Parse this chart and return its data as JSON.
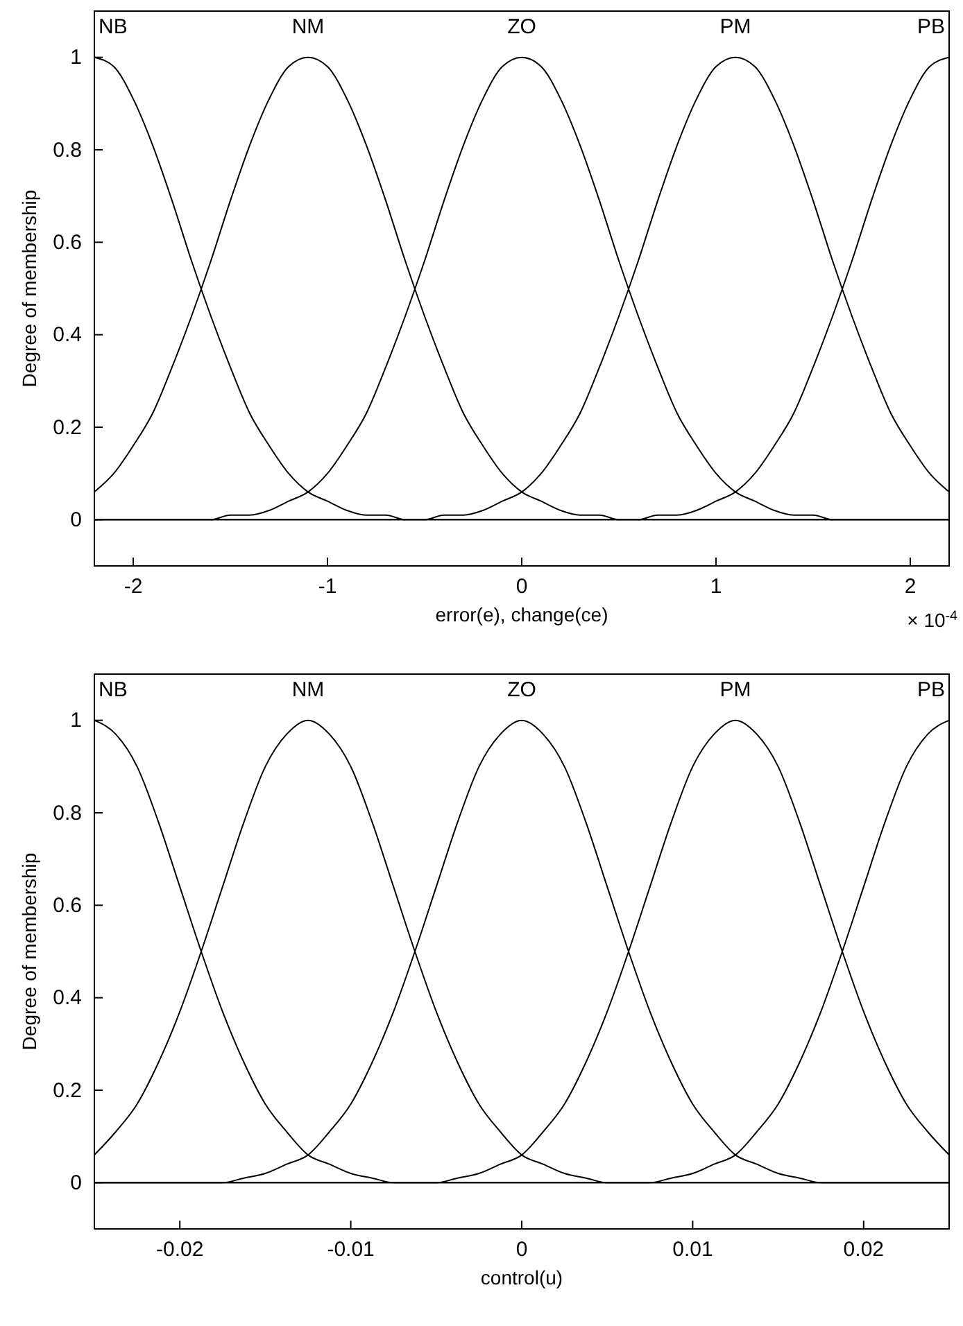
{
  "chart_data": [
    {
      "type": "line",
      "xlabel": "error(e), change(ce)",
      "ylabel": "Degree of membership",
      "annotations": [
        "× 10$^{-4}$"
      ],
      "xlim": [
        -2.2,
        2.2
      ],
      "xticks": [
        -2,
        -1,
        0,
        1,
        2
      ],
      "ylim": [
        -0.1,
        1.1
      ],
      "yticks": [
        0,
        0.2,
        0.4,
        0.6,
        0.8,
        1
      ],
      "x": [
        -2.2,
        -2.1,
        -2,
        -1.9,
        -1.8,
        -1.7,
        -1.6,
        -1.5,
        -1.4,
        -1.3,
        -1.2,
        -1.1,
        -1,
        -0.9,
        -0.8,
        -0.7,
        -0.6,
        -0.5,
        -0.4,
        -0.3,
        -0.2,
        -0.1,
        0,
        0.1,
        0.2,
        0.3,
        0.4,
        0.5,
        0.6,
        0.7,
        0.8,
        0.9,
        1,
        1.1,
        1.2,
        1.3,
        1.4,
        1.5,
        1.6,
        1.7,
        1.8,
        1.9,
        2,
        2.1,
        2.2
      ],
      "series": [
        {
          "name": "NB",
          "color": "#000000",
          "values": [
            1,
            0.98,
            0.91,
            0.81,
            0.69,
            0.56,
            0.44,
            0.33,
            0.23,
            0.16,
            0.1,
            0.06,
            0.04,
            0.02,
            0.01,
            0.01,
            0,
            0,
            0,
            0,
            0,
            0,
            0,
            0,
            0,
            0,
            0,
            0,
            0,
            0,
            0,
            0,
            0,
            0,
            0,
            0,
            0,
            0,
            0,
            0,
            0,
            0,
            0,
            0,
            0
          ]
        },
        {
          "name": "NM",
          "color": "#000000",
          "values": [
            0.06,
            0.1,
            0.16,
            0.23,
            0.33,
            0.44,
            0.56,
            0.69,
            0.81,
            0.91,
            0.98,
            1,
            0.98,
            0.91,
            0.81,
            0.69,
            0.56,
            0.44,
            0.33,
            0.23,
            0.16,
            0.1,
            0.06,
            0.04,
            0.02,
            0.01,
            0.01,
            0,
            0,
            0,
            0,
            0,
            0,
            0,
            0,
            0,
            0,
            0,
            0,
            0,
            0,
            0,
            0,
            0,
            0
          ]
        },
        {
          "name": "ZO",
          "color": "#000000",
          "values": [
            0,
            0,
            0,
            0,
            0,
            0,
            0,
            0.01,
            0.01,
            0.02,
            0.04,
            0.06,
            0.1,
            0.16,
            0.23,
            0.33,
            0.44,
            0.56,
            0.69,
            0.81,
            0.91,
            0.98,
            1,
            0.98,
            0.91,
            0.81,
            0.69,
            0.56,
            0.44,
            0.33,
            0.23,
            0.16,
            0.1,
            0.06,
            0.04,
            0.02,
            0.01,
            0.01,
            0,
            0,
            0,
            0,
            0,
            0,
            0
          ]
        },
        {
          "name": "PM",
          "color": "#000000",
          "values": [
            0,
            0,
            0,
            0,
            0,
            0,
            0,
            0,
            0,
            0,
            0,
            0,
            0,
            0,
            0,
            0,
            0,
            0,
            0.01,
            0.01,
            0.02,
            0.04,
            0.06,
            0.1,
            0.16,
            0.23,
            0.33,
            0.44,
            0.56,
            0.69,
            0.81,
            0.91,
            0.98,
            1,
            0.98,
            0.91,
            0.81,
            0.69,
            0.56,
            0.44,
            0.33,
            0.23,
            0.16,
            0.1,
            0.06
          ]
        },
        {
          "name": "PB",
          "color": "#000000",
          "values": [
            0,
            0,
            0,
            0,
            0,
            0,
            0,
            0,
            0,
            0,
            0,
            0,
            0,
            0,
            0,
            0,
            0,
            0,
            0,
            0,
            0,
            0,
            0,
            0,
            0,
            0,
            0,
            0,
            0,
            0.01,
            0.01,
            0.02,
            0.04,
            0.06,
            0.1,
            0.16,
            0.23,
            0.33,
            0.44,
            0.56,
            0.69,
            0.81,
            0.91,
            0.98,
            1
          ]
        }
      ]
    },
    {
      "type": "line",
      "xlabel": "control(u)",
      "ylabel": "Degree of membership",
      "xlim": [
        -0.025,
        0.025
      ],
      "xticks": [
        -0.02,
        -0.01,
        0,
        0.01,
        0.02
      ],
      "ylim": [
        -0.1,
        1.1
      ],
      "yticks": [
        0,
        0.2,
        0.4,
        0.6,
        0.8,
        1
      ],
      "x": [
        -0.025,
        -0.02375,
        -0.0225,
        -0.02125,
        -0.02,
        -0.01875,
        -0.0175,
        -0.01625,
        -0.015,
        -0.01375,
        -0.0125,
        -0.01125,
        -0.01,
        -0.00875,
        -0.0075,
        -0.00625,
        -0.005,
        -0.00375,
        -0.0025,
        -0.00125,
        0,
        0.00125,
        0.0025,
        0.00375,
        0.005,
        0.00625,
        0.0075,
        0.00875,
        0.01,
        0.01125,
        0.0125,
        0.01375,
        0.015,
        0.01625,
        0.0175,
        0.01875,
        0.02,
        0.02125,
        0.0225,
        0.02375,
        0.025
      ],
      "series": [
        {
          "name": "NB",
          "color": "#000000",
          "values": [
            1,
            0.97,
            0.9,
            0.78,
            0.64,
            0.5,
            0.37,
            0.26,
            0.17,
            0.11,
            0.06,
            0.04,
            0.02,
            0.01,
            0,
            0,
            0,
            0,
            0,
            0,
            0,
            0,
            0,
            0,
            0,
            0,
            0,
            0,
            0,
            0,
            0,
            0,
            0,
            0,
            0,
            0,
            0,
            0,
            0,
            0,
            0
          ]
        },
        {
          "name": "NM",
          "color": "#000000",
          "values": [
            0.06,
            0.11,
            0.17,
            0.26,
            0.37,
            0.5,
            0.64,
            0.78,
            0.9,
            0.97,
            1,
            0.97,
            0.9,
            0.78,
            0.64,
            0.5,
            0.37,
            0.26,
            0.17,
            0.11,
            0.06,
            0.04,
            0.02,
            0.01,
            0,
            0,
            0,
            0,
            0,
            0,
            0,
            0,
            0,
            0,
            0,
            0,
            0,
            0,
            0,
            0,
            0
          ]
        },
        {
          "name": "ZO",
          "color": "#000000",
          "values": [
            0,
            0,
            0,
            0,
            0,
            0,
            0,
            0.01,
            0.02,
            0.04,
            0.06,
            0.11,
            0.17,
            0.26,
            0.37,
            0.5,
            0.64,
            0.78,
            0.9,
            0.97,
            1,
            0.97,
            0.9,
            0.78,
            0.64,
            0.5,
            0.37,
            0.26,
            0.17,
            0.11,
            0.06,
            0.04,
            0.02,
            0.01,
            0,
            0,
            0,
            0,
            0,
            0,
            0
          ]
        },
        {
          "name": "PM",
          "color": "#000000",
          "values": [
            0,
            0,
            0,
            0,
            0,
            0,
            0,
            0,
            0,
            0,
            0,
            0,
            0,
            0,
            0,
            0,
            0,
            0.01,
            0.02,
            0.04,
            0.06,
            0.11,
            0.17,
            0.26,
            0.37,
            0.5,
            0.64,
            0.78,
            0.9,
            0.97,
            1,
            0.97,
            0.9,
            0.78,
            0.64,
            0.5,
            0.37,
            0.26,
            0.17,
            0.11,
            0.06
          ]
        },
        {
          "name": "PB",
          "color": "#000000",
          "values": [
            0,
            0,
            0,
            0,
            0,
            0,
            0,
            0,
            0,
            0,
            0,
            0,
            0,
            0,
            0,
            0,
            0,
            0,
            0,
            0,
            0,
            0,
            0,
            0,
            0,
            0,
            0,
            0.01,
            0.02,
            0.04,
            0.06,
            0.11,
            0.17,
            0.26,
            0.37,
            0.5,
            0.64,
            0.78,
            0.9,
            0.97,
            1
          ]
        }
      ]
    }
  ]
}
